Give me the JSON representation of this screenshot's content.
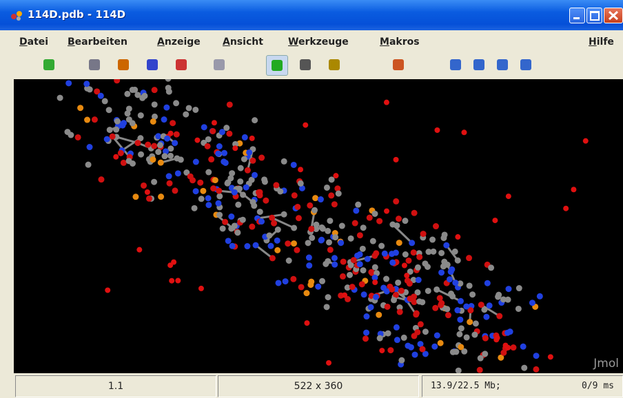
{
  "window": {
    "title": "114D.pdb - 114D"
  },
  "menu": [
    "Datei",
    "Bearbeiten",
    "Anzeige",
    "Ansicht",
    "Werkzeuge",
    "Makros",
    "Hilfe"
  ],
  "viewer": {
    "watermark": "Jmol"
  },
  "status": [
    "1.1",
    "522 x 360",
    "13.9/22.5 Mb;",
    "0/9 ms"
  ]
}
